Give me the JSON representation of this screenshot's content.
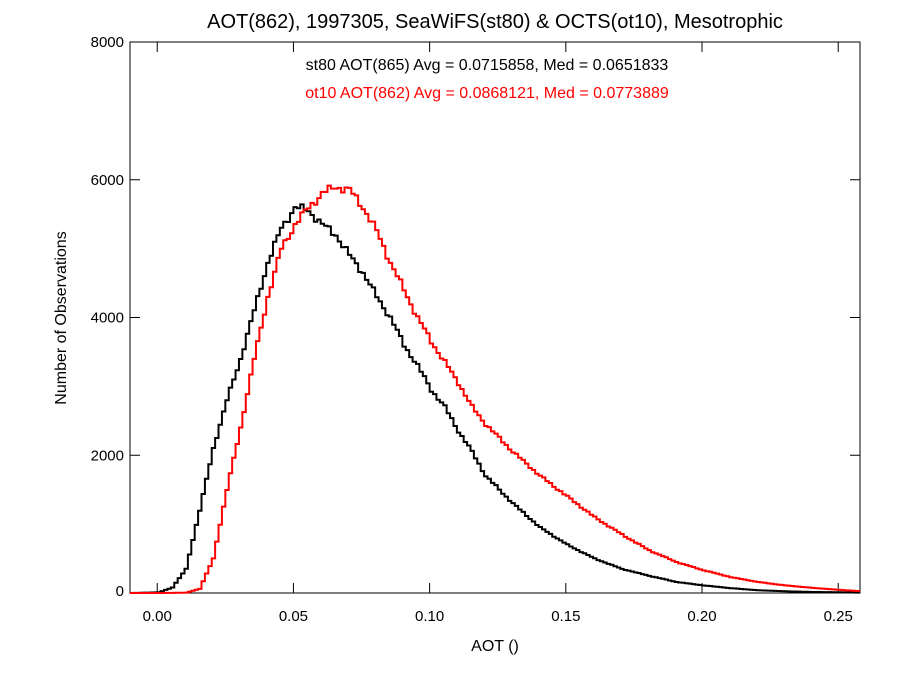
{
  "chart_data": {
    "type": "line",
    "step": true,
    "title": "AOT(862), 1997305, SeaWiFS(st80) & OCTS(ot10), Mesotrophic",
    "xlabel": "AOT ()",
    "ylabel": "Number of Observations",
    "xlim": [
      -0.01,
      0.258
    ],
    "ylim": [
      0,
      8000
    ],
    "x_ticks": [
      0.0,
      0.05,
      0.1,
      0.15,
      0.2,
      0.25
    ],
    "x_tick_labels": [
      "0.00",
      "0.05",
      "0.10",
      "0.15",
      "0.20",
      "0.25"
    ],
    "y_ticks": [
      0,
      2000,
      4000,
      6000,
      8000
    ],
    "y_tick_labels": [
      "0",
      "2000",
      "4000",
      "6000",
      "8000"
    ],
    "grid": false,
    "annotations": [
      {
        "text": "st80 AOT(865) Avg = 0.0715858, Med = 0.0651833",
        "color": "#000000"
      },
      {
        "text": "ot10 AOT(862) Avg = 0.0868121, Med = 0.0773889",
        "color": "#ff0000"
      }
    ],
    "series": [
      {
        "color": "#000000",
        "x": [
          -0.01,
          0.0,
          0.005,
          0.01,
          0.015,
          0.02,
          0.025,
          0.03,
          0.035,
          0.04,
          0.045,
          0.05,
          0.055,
          0.06,
          0.065,
          0.07,
          0.075,
          0.08,
          0.085,
          0.09,
          0.095,
          0.1,
          0.105,
          0.11,
          0.115,
          0.12,
          0.125,
          0.13,
          0.14,
          0.15,
          0.16,
          0.17,
          0.18,
          0.19,
          0.2,
          0.21,
          0.22,
          0.23,
          0.24,
          0.25,
          0.258
        ],
        "y": [
          0,
          10,
          80,
          350,
          1200,
          2100,
          2800,
          3400,
          4100,
          4800,
          5300,
          5600,
          5550,
          5350,
          5200,
          4900,
          4650,
          4300,
          4000,
          3600,
          3300,
          2950,
          2700,
          2350,
          2050,
          1700,
          1500,
          1300,
          950,
          700,
          500,
          350,
          250,
          160,
          110,
          70,
          40,
          25,
          15,
          10,
          5
        ]
      },
      {
        "color": "#ff0000",
        "x": [
          -0.01,
          0.0,
          0.01,
          0.015,
          0.02,
          0.025,
          0.03,
          0.035,
          0.04,
          0.045,
          0.05,
          0.055,
          0.06,
          0.065,
          0.07,
          0.075,
          0.08,
          0.085,
          0.09,
          0.095,
          0.1,
          0.105,
          0.11,
          0.115,
          0.12,
          0.13,
          0.14,
          0.15,
          0.16,
          0.17,
          0.18,
          0.19,
          0.2,
          0.21,
          0.22,
          0.23,
          0.24,
          0.25,
          0.258
        ],
        "y": [
          0,
          0,
          5,
          60,
          500,
          1500,
          2400,
          3400,
          4300,
          5000,
          5350,
          5600,
          5800,
          5900,
          5850,
          5600,
          5250,
          4800,
          4400,
          4000,
          3650,
          3350,
          3050,
          2700,
          2450,
          2050,
          1700,
          1400,
          1100,
          850,
          620,
          450,
          330,
          230,
          160,
          110,
          75,
          45,
          25
        ]
      }
    ]
  }
}
